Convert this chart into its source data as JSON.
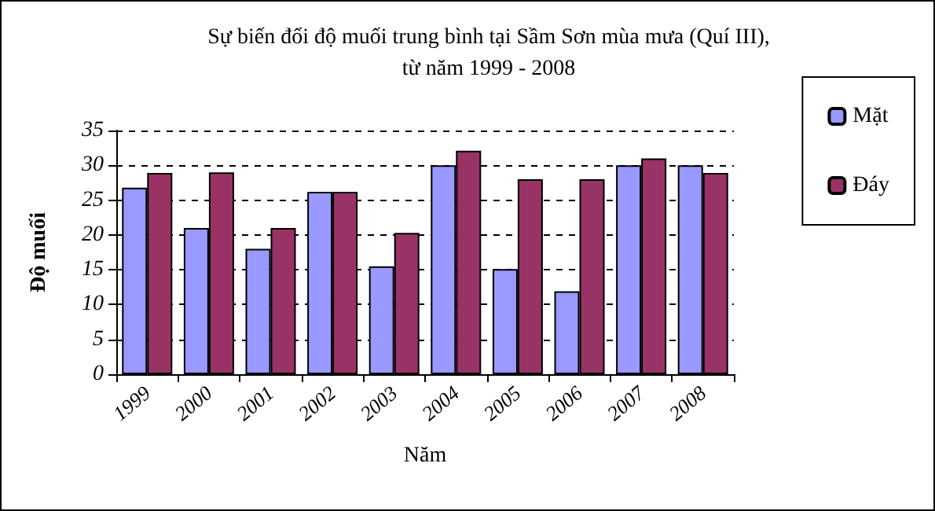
{
  "chart_data": {
    "type": "bar",
    "title": "Sự biến đổi độ muối trung bình tại Sầm Sơn mùa mưa (Quí III),\ntừ năm 1999 - 2008",
    "xlabel": "Năm",
    "ylabel": "Độ muối",
    "categories": [
      "1999",
      "2000",
      "2001",
      "2002",
      "2003",
      "2004",
      "2005",
      "2006",
      "2007",
      "2008"
    ],
    "series": [
      {
        "name": "Mặt",
        "color": "#9999ff",
        "values": [
          26.8,
          21,
          18,
          26.2,
          15.5,
          30,
          15.1,
          11.9,
          30,
          30
        ]
      },
      {
        "name": "Đáy",
        "color": "#993366",
        "values": [
          28.9,
          29,
          21,
          26.2,
          20.3,
          32.1,
          28,
          28,
          31,
          28.9
        ]
      }
    ],
    "ylim": [
      0,
      35
    ],
    "yticks": [
      0,
      5,
      10,
      15,
      20,
      25,
      30,
      35
    ],
    "grid": "y",
    "legend": "right"
  }
}
